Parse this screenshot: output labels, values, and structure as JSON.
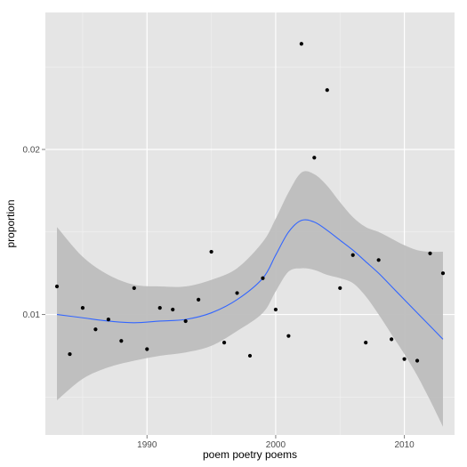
{
  "chart_data": {
    "type": "scatter",
    "title": "",
    "xlabel": "poem poetry poems",
    "ylabel": "proportion",
    "xlim": [
      1982.1,
      2013.9
    ],
    "ylim": [
      0.0027,
      0.0283
    ],
    "x_ticks": [
      1990,
      2000,
      2010
    ],
    "x_tick_labels": [
      "1990",
      "2000",
      "2010"
    ],
    "y_ticks": [
      0.01,
      0.02
    ],
    "y_tick_labels": [
      "0.01",
      "0.02"
    ],
    "grid": true,
    "legend": "none",
    "points": [
      {
        "x": 1983,
        "y": 0.0117
      },
      {
        "x": 1984,
        "y": 0.0076
      },
      {
        "x": 1985,
        "y": 0.0104
      },
      {
        "x": 1986,
        "y": 0.0091
      },
      {
        "x": 1987,
        "y": 0.0097
      },
      {
        "x": 1988,
        "y": 0.0084
      },
      {
        "x": 1989,
        "y": 0.0116
      },
      {
        "x": 1990,
        "y": 0.0079
      },
      {
        "x": 1991,
        "y": 0.0104
      },
      {
        "x": 1992,
        "y": 0.0103
      },
      {
        "x": 1993,
        "y": 0.0096
      },
      {
        "x": 1994,
        "y": 0.0109
      },
      {
        "x": 1995,
        "y": 0.0138
      },
      {
        "x": 1996,
        "y": 0.0083
      },
      {
        "x": 1997,
        "y": 0.0113
      },
      {
        "x": 1998,
        "y": 0.0075
      },
      {
        "x": 1999,
        "y": 0.0122
      },
      {
        "x": 2000,
        "y": 0.0103
      },
      {
        "x": 2001,
        "y": 0.0087
      },
      {
        "x": 2002,
        "y": 0.0264
      },
      {
        "x": 2003,
        "y": 0.0195
      },
      {
        "x": 2004,
        "y": 0.0236
      },
      {
        "x": 2005,
        "y": 0.0116
      },
      {
        "x": 2006,
        "y": 0.0136
      },
      {
        "x": 2007,
        "y": 0.0083
      },
      {
        "x": 2008,
        "y": 0.0133
      },
      {
        "x": 2009,
        "y": 0.0085
      },
      {
        "x": 2010,
        "y": 0.0073
      },
      {
        "x": 2011,
        "y": 0.0072
      },
      {
        "x": 2012,
        "y": 0.0137
      },
      {
        "x": 2013,
        "y": 0.0125
      }
    ],
    "smooth": {
      "x": [
        1983,
        1985,
        1987,
        1989,
        1991,
        1993,
        1995,
        1997,
        1999,
        2000,
        2001,
        2002,
        2003,
        2004,
        2005,
        2006,
        2007,
        2008,
        2009,
        2010,
        2011,
        2012,
        2013
      ],
      "y": [
        0.01,
        0.0098,
        0.0096,
        0.0095,
        0.0096,
        0.0097,
        0.0101,
        0.0109,
        0.0122,
        0.0136,
        0.015,
        0.0157,
        0.0156,
        0.0151,
        0.0145,
        0.0139,
        0.0132,
        0.0125,
        0.0117,
        0.0109,
        0.0101,
        0.0093,
        0.0085
      ],
      "upper": [
        0.0153,
        0.0135,
        0.0124,
        0.0118,
        0.0117,
        0.0117,
        0.0121,
        0.0128,
        0.0144,
        0.0158,
        0.0174,
        0.0186,
        0.0185,
        0.0178,
        0.0168,
        0.0159,
        0.0153,
        0.015,
        0.0146,
        0.0142,
        0.0139,
        0.0138,
        0.0138
      ],
      "lower": [
        0.0048,
        0.0061,
        0.0068,
        0.0072,
        0.0075,
        0.0077,
        0.0081,
        0.009,
        0.0101,
        0.0114,
        0.0126,
        0.0128,
        0.0127,
        0.0124,
        0.0122,
        0.0119,
        0.0111,
        0.01,
        0.0088,
        0.0076,
        0.0063,
        0.0048,
        0.0032
      ]
    },
    "colors": {
      "panel": "#e5e5e5",
      "grid": "#ffffff",
      "points": "#000000",
      "line": "#3366ff",
      "band": "#bdbdbd"
    }
  }
}
